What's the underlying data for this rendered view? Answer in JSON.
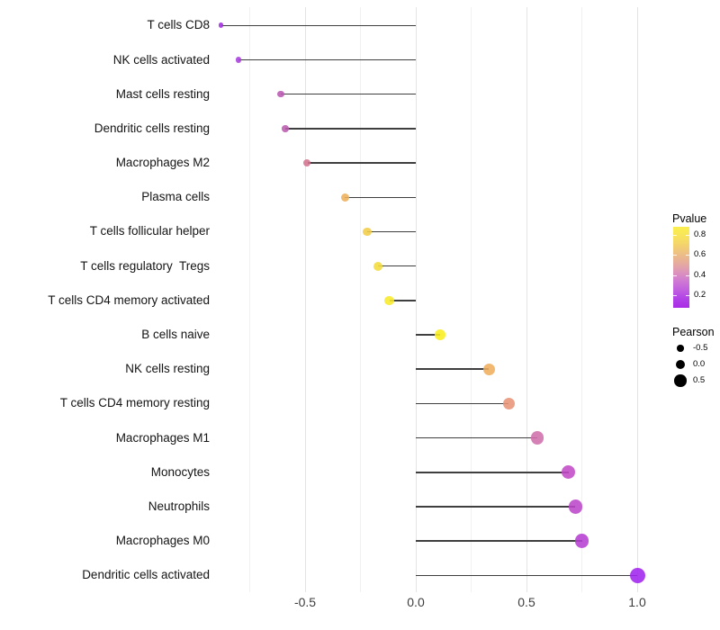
{
  "chart_data": {
    "type": "lollipop",
    "orientation": "horizontal",
    "title": "",
    "xlabel": "",
    "ylabel": "",
    "categories": [
      "T cells CD8",
      "NK cells activated",
      "Mast cells resting",
      "Dendritic cells resting",
      "Macrophages M2",
      "Plasma cells",
      "T cells follicular helper",
      "T cells regulatory  Tregs",
      "T cells CD4 memory activated",
      "B cells naive",
      "NK cells resting",
      "T cells CD4 memory resting",
      "Macrophages M1",
      "Monocytes",
      "Neutrophils",
      "Macrophages M0",
      "Dendritic cells activated"
    ],
    "series": [
      {
        "name": "Pearson",
        "values": [
          -0.88,
          -0.8,
          -0.61,
          -0.59,
          -0.49,
          -0.32,
          -0.22,
          -0.17,
          -0.12,
          0.11,
          0.33,
          0.42,
          0.55,
          0.69,
          0.72,
          0.75,
          1.0
        ]
      }
    ],
    "point_colors": [
      "#A22BE2",
      "#A83DDE",
      "#BA58B2",
      "#BB5CAF",
      "#D3738F",
      "#EDB05C",
      "#F1CD47",
      "#F4DB3B",
      "#F8E92B",
      "#FAEE1E",
      "#EFAE5E",
      "#E79478",
      "#D06FAC",
      "#C34AC6",
      "#BC47CA",
      "#B63FD3",
      "#A124EE"
    ],
    "x_axis": {
      "range": [
        -0.92,
        1.08
      ],
      "ticks": [
        {
          "label": "-0.5",
          "value": -0.5
        },
        {
          "label": "0.0",
          "value": 0.0
        },
        {
          "label": "0.5",
          "value": 0.5
        },
        {
          "label": "1.0",
          "value": 1.0
        }
      ]
    },
    "grid": {
      "major_x": [
        -0.5,
        0.0,
        0.5,
        1.0
      ],
      "minor_x": [
        -0.75,
        -0.25,
        0.25,
        0.75
      ]
    },
    "stem_color": "#3f3f3f",
    "background": "#ffffff",
    "color_legend": {
      "title": "Pvalue",
      "value_range": [
        0.078,
        0.875
      ],
      "ticks": [
        {
          "label": "0.8",
          "value": 0.8
        },
        {
          "label": "0.6",
          "value": 0.6
        },
        {
          "label": "0.4",
          "value": 0.4
        },
        {
          "label": "0.2",
          "value": 0.2
        }
      ],
      "gradient_top_to_bottom": [
        "#FAEF4D",
        "#F8E55C",
        "#F3D36D",
        "#EDBF85",
        "#E6AC9C",
        "#DD95BA",
        "#CF7AD2",
        "#C160DF",
        "#B141E7",
        "#A92BE5"
      ]
    },
    "size_legend": {
      "title": "Pearson",
      "items": [
        {
          "label": "-0.5",
          "value": -0.5
        },
        {
          "label": "0.0",
          "value": 0.0
        },
        {
          "label": "0.5",
          "value": 0.5
        }
      ]
    }
  }
}
